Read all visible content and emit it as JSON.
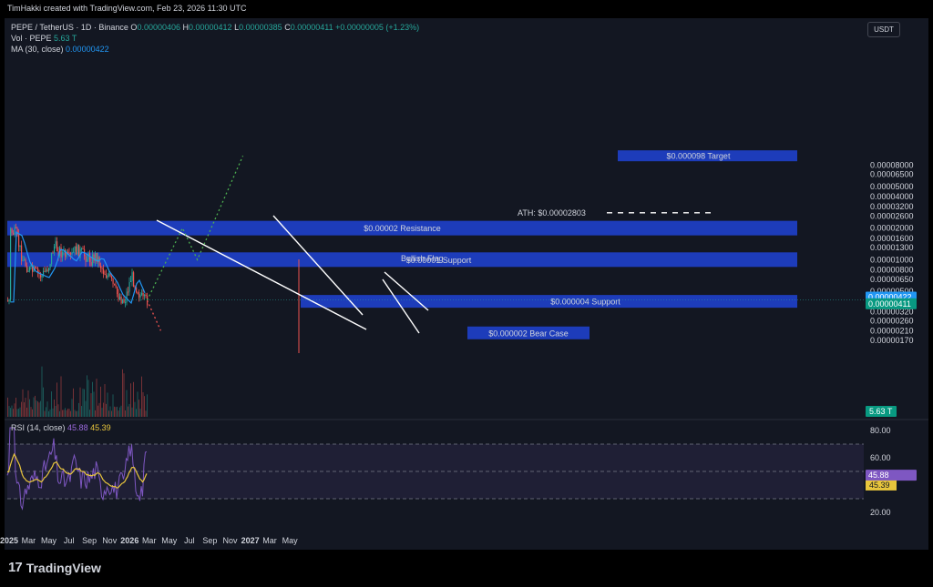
{
  "header": {
    "credit": "TimHakki created with TradingView.com, Feb 23, 2026 11:30 UTC",
    "symbol": "PEPE / TetherUS · 1D · Binance",
    "open_label": "O",
    "open": "0.00000406",
    "high_label": "H",
    "high": "0.00000412",
    "low_label": "L",
    "low": "0.00000385",
    "close_label": "C",
    "close": "0.00000411",
    "change": "+0.00000005 (+1.23%)",
    "vol_label": "Vol · PEPE",
    "vol_value": "5.63 T",
    "ma_label": "MA (30, close)",
    "ma_value": "0.00000422",
    "rsi_label": "RSI (14, close)",
    "rsi_value": "45.88",
    "rsi_ma_value": "45.39",
    "currency_button": "USDT"
  },
  "branding": {
    "logo_mark": "17",
    "logo_text": "TradingView"
  },
  "colors": {
    "background": "#131722",
    "up": "#26a69a",
    "down": "#ef5350",
    "ma": "#2196f3",
    "zone": "#1e40c8",
    "rsi": "#7e57c2",
    "rsi_ma": "#e8c53c",
    "target_path": "#4caf50",
    "bear_path": "#ef5350",
    "white_lines": "#ffffff"
  },
  "chart_data": {
    "type": "candlestick",
    "scale": "log",
    "x_ticks": [
      "2025",
      "Mar",
      "May",
      "Jul",
      "Sep",
      "Nov",
      "2026",
      "Mar",
      "May",
      "Jul",
      "Sep",
      "Nov",
      "2027",
      "Mar",
      "May"
    ],
    "y_ticks": [
      "0.00008000",
      "0.00006500",
      "0.00005000",
      "0.00004000",
      "0.00003200",
      "0.00002600",
      "0.00002000",
      "0.00001600",
      "0.00001300",
      "0.00001000",
      "0.00000800",
      "0.00000650",
      "0.00000500",
      "0.00000320",
      "0.00000260",
      "0.00000210",
      "0.00000170"
    ],
    "rsi_ticks": [
      "80.00",
      "60.00",
      "20.00"
    ],
    "rsi_levels": [
      70,
      50,
      30
    ],
    "price_tags": {
      "ma": "0.00000422",
      "last": "0.00000411",
      "volume": "5.63 T",
      "rsi": "45.88",
      "rsi_ma": "45.39"
    },
    "zones": [
      {
        "label": "$0.000098 Target",
        "value": 9.8e-05
      },
      {
        "label": "$0.00002 Resistance",
        "value": 2e-05
      },
      {
        "label": "$0.00001 Support",
        "value": 1e-05
      },
      {
        "label": "$0.000004 Support",
        "value": 4e-06
      },
      {
        "label": "$0.000002 Bear Case",
        "value": 2e-06
      }
    ],
    "annotations": {
      "ath": "ATH: $0.00002803",
      "ath_value": 2.803e-05,
      "flag": "Bullish Flag"
    },
    "price_path_approx": [
      {
        "date": "2025-01-01",
        "close": 1.9e-05
      },
      {
        "date": "2025-01-20",
        "close": 1.75e-05
      },
      {
        "date": "2025-02-10",
        "close": 1e-05
      },
      {
        "date": "2025-03-01",
        "close": 8e-06
      },
      {
        "date": "2025-03-20",
        "close": 7.5e-06
      },
      {
        "date": "2025-04-10",
        "close": 7e-06
      },
      {
        "date": "2025-05-01",
        "close": 9e-06
      },
      {
        "date": "2025-05-15",
        "close": 1.35e-05
      },
      {
        "date": "2025-06-10",
        "close": 1.15e-05
      },
      {
        "date": "2025-07-01",
        "close": 1e-05
      },
      {
        "date": "2025-07-20",
        "close": 1.25e-05
      },
      {
        "date": "2025-08-15",
        "close": 1.1e-05
      },
      {
        "date": "2025-09-05",
        "close": 1e-05
      },
      {
        "date": "2025-09-20",
        "close": 1.1e-05
      },
      {
        "date": "2025-10-10",
        "close": 8e-06
      },
      {
        "date": "2025-11-01",
        "close": 6.5e-06
      },
      {
        "date": "2025-11-20",
        "close": 4.8e-06
      },
      {
        "date": "2025-12-15",
        "close": 4e-06
      },
      {
        "date": "2026-01-05",
        "close": 7e-06
      },
      {
        "date": "2026-01-25",
        "close": 5e-06
      },
      {
        "date": "2026-02-10",
        "close": 4e-06
      },
      {
        "date": "2026-02-23",
        "close": 4.11e-06
      }
    ],
    "projection_bull": [
      {
        "date": "2026-02-23",
        "value": 4.1e-06
      },
      {
        "date": "2026-06-10",
        "value": 2e-05
      },
      {
        "date": "2026-07-25",
        "value": 1e-05
      },
      {
        "date": "2026-12-10",
        "value": 9.8e-05
      }
    ],
    "projection_bear": [
      {
        "date": "2026-02-23",
        "value": 4.1e-06
      },
      {
        "date": "2026-04-05",
        "value": 2.1e-06
      }
    ]
  }
}
